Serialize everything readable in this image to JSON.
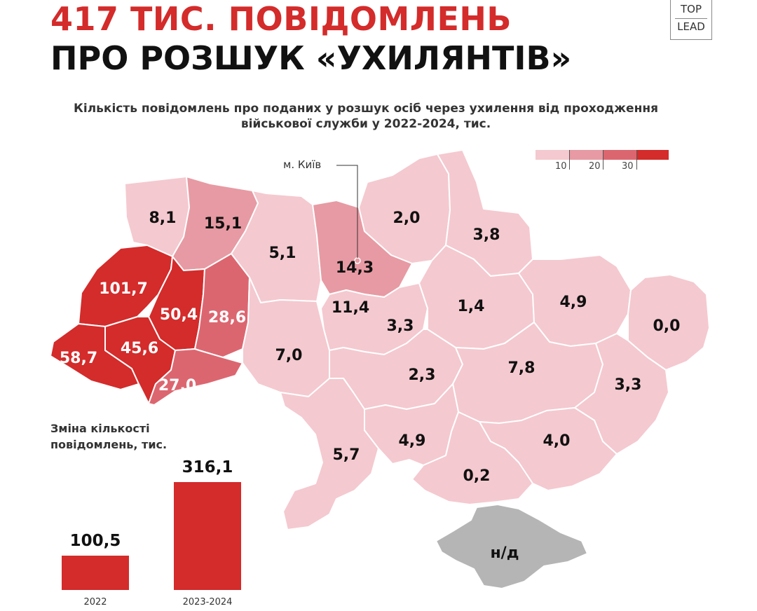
{
  "header": {
    "title_line1": "417 ТИС. ПОВІДОМЛЕНЬ",
    "title_line2": "ПРО РОЗШУК «УХИЛЯНТІВ»",
    "logo_top": "TOP",
    "logo_bottom": "LEAD",
    "subtitle_line1": "Кількість повідомлень про поданих у розшук осіб через ухилення від проходження",
    "subtitle_line2": "військової служби у 2022-2024, тис."
  },
  "legend": {
    "ticks": [
      "10",
      "20",
      "30"
    ],
    "colors": [
      "#f4c9cf",
      "#e79aa3",
      "#dc6670",
      "#d42b2b"
    ]
  },
  "map": {
    "kyiv_label": "м. Київ",
    "colors": {
      "light": "#f4c9cf",
      "mid": "#e79aa3",
      "mid2": "#dc6670",
      "dark": "#d42b2b",
      "na": "#b5b5b5"
    },
    "regions": [
      {
        "value": "8,1",
        "level": "light"
      },
      {
        "value": "15,1",
        "level": "mid"
      },
      {
        "value": "101,7",
        "level": "dark"
      },
      {
        "value": "50,4",
        "level": "dark"
      },
      {
        "value": "28,6",
        "level": "mid2"
      },
      {
        "value": "58,7",
        "level": "dark"
      },
      {
        "value": "45,6",
        "level": "dark"
      },
      {
        "value": "27,0",
        "level": "mid2"
      },
      {
        "value": "5,1",
        "level": "light"
      },
      {
        "value": "14,3",
        "level": "mid"
      },
      {
        "value": "11,4",
        "level": "mid"
      },
      {
        "value": "7,0",
        "level": "light"
      },
      {
        "value": "2,0",
        "level": "light"
      },
      {
        "value": "3,8",
        "level": "light"
      },
      {
        "value": "3,3",
        "level": "light"
      },
      {
        "value": "1,4",
        "level": "light"
      },
      {
        "value": "4,9",
        "level": "light"
      },
      {
        "value": "0,0",
        "level": "light"
      },
      {
        "value": "2,3",
        "level": "light"
      },
      {
        "value": "7,8",
        "level": "light"
      },
      {
        "value": "3,3",
        "level": "light"
      },
      {
        "value": "5,7",
        "level": "light"
      },
      {
        "value": "4,9",
        "level": "light"
      },
      {
        "value": "4,0",
        "level": "light"
      },
      {
        "value": "0,2",
        "level": "light"
      },
      {
        "value": "н/д",
        "level": "na"
      }
    ]
  },
  "chart_data": {
    "type": "bar",
    "title": "Зміна кількості повідомлень, тис.",
    "categories": [
      "2022",
      "2023-2024"
    ],
    "values": [
      100.5,
      316.1
    ],
    "value_labels": [
      "100,5",
      "316,1"
    ],
    "xlabel": "",
    "ylabel": "",
    "ylim": [
      0,
      316.1
    ]
  }
}
